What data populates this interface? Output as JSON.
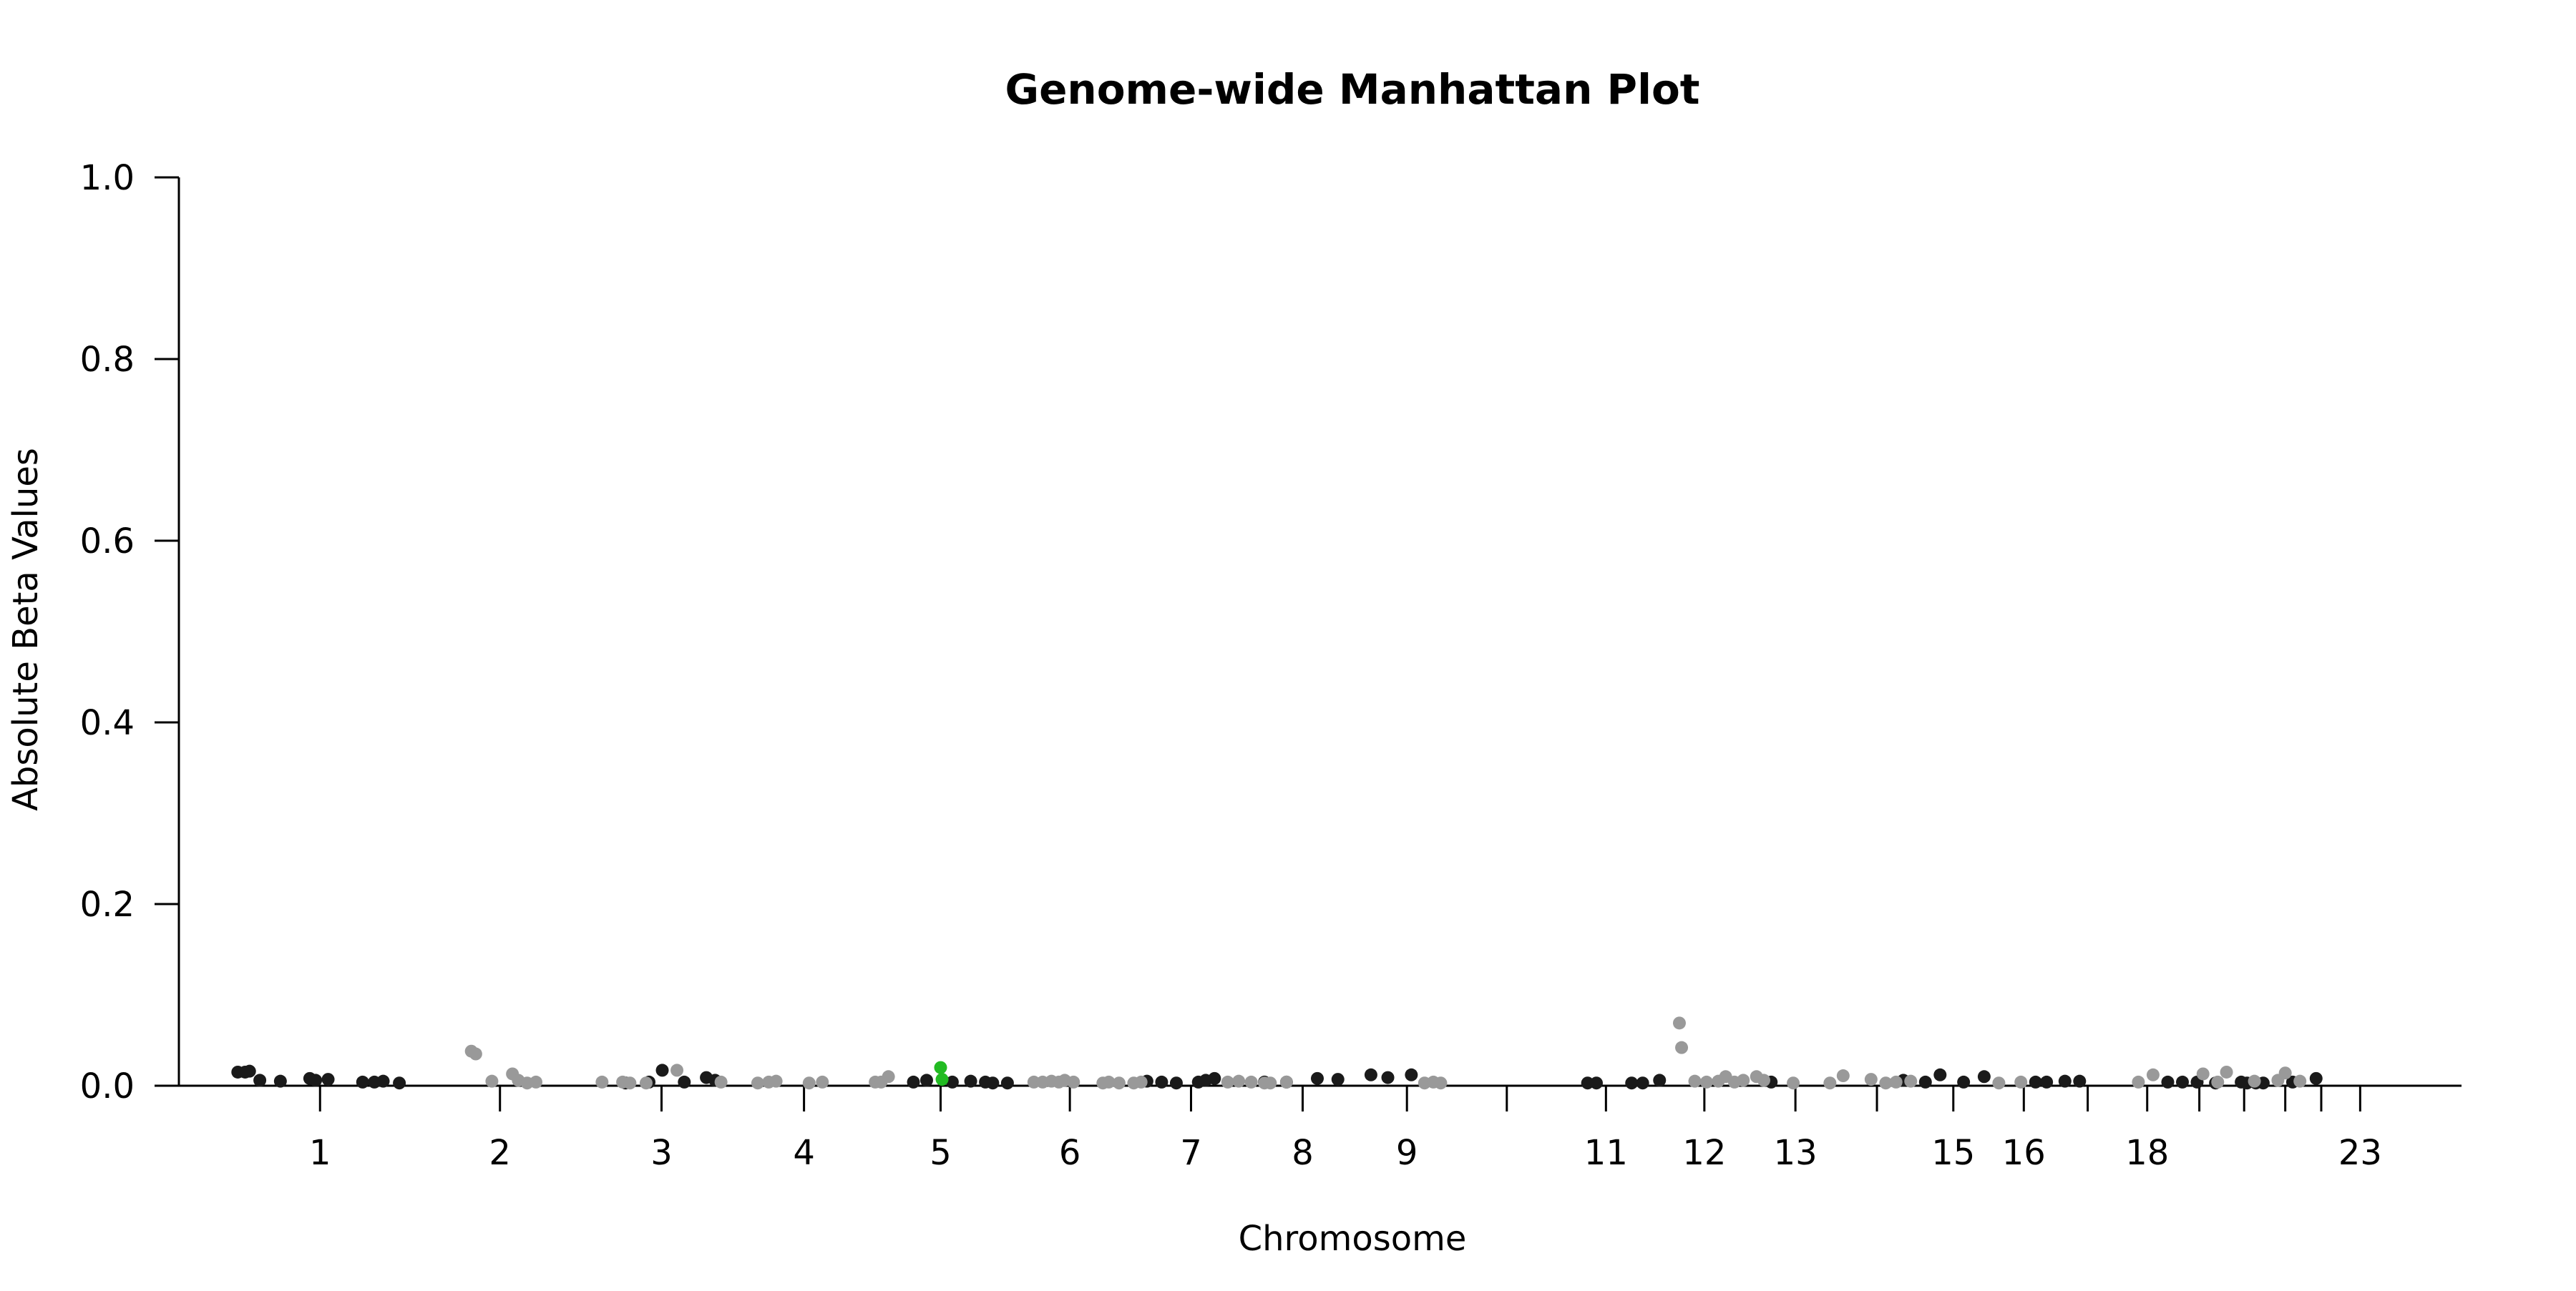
{
  "chart_data": {
    "type": "scatter",
    "title": "Genome-wide Manhattan Plot",
    "xlabel": "Chromosome",
    "ylabel": "Absolute Beta Values",
    "ylim": [
      0,
      1
    ],
    "yticks": [
      "0.0",
      "0.2",
      "0.4",
      "0.6",
      "0.8",
      "1.0"
    ],
    "xlim": [
      0,
      3040
    ],
    "grid": false,
    "legend": "none",
    "colors": {
      "odd_chromosome": "#1a1a1a",
      "even_chromosome": "#999999",
      "highlight": "#22bb22"
    },
    "chromosomes": [
      {
        "label": "1",
        "start": 0,
        "end": 248,
        "tick": 124
      },
      {
        "label": "2",
        "start": 248,
        "end": 490,
        "tick": 369
      },
      {
        "label": "3",
        "start": 490,
        "end": 688,
        "tick": 589
      },
      {
        "label": "4",
        "start": 688,
        "end": 878,
        "tick": 783
      },
      {
        "label": "5",
        "start": 878,
        "end": 1059,
        "tick": 969
      },
      {
        "label": "6",
        "start": 1059,
        "end": 1230,
        "tick": 1145
      },
      {
        "label": "7",
        "start": 1230,
        "end": 1389,
        "tick": 1310
      },
      {
        "label": "8",
        "start": 1389,
        "end": 1535,
        "tick": 1462
      },
      {
        "label": "9",
        "start": 1535,
        "end": 1673,
        "tick": 1604
      },
      {
        "label": "",
        "start": 1673,
        "end": 1807,
        "tick": 1740
      },
      {
        "label": "11",
        "start": 1807,
        "end": 1942,
        "tick": 1875
      },
      {
        "label": "12",
        "start": 1942,
        "end": 2076,
        "tick": 2009
      },
      {
        "label": "13",
        "start": 2076,
        "end": 2190,
        "tick": 2133
      },
      {
        "label": "",
        "start": 2190,
        "end": 2297,
        "tick": 2244
      },
      {
        "label": "15",
        "start": 2297,
        "end": 2399,
        "tick": 2348
      },
      {
        "label": "16",
        "start": 2399,
        "end": 2489,
        "tick": 2444
      },
      {
        "label": "",
        "start": 2489,
        "end": 2572,
        "tick": 2531
      },
      {
        "label": "18",
        "start": 2572,
        "end": 2653,
        "tick": 2612
      },
      {
        "label": "",
        "start": 2653,
        "end": 2712,
        "tick": 2683
      },
      {
        "label": "",
        "start": 2712,
        "end": 2776,
        "tick": 2744
      },
      {
        "label": "",
        "start": 2776,
        "end": 2823,
        "tick": 2800
      },
      {
        "label": "",
        "start": 2823,
        "end": 2874,
        "tick": 2849
      },
      {
        "label": "23",
        "start": 2874,
        "end": 2929,
        "tick": 2902
      }
    ],
    "series": [
      {
        "name": "",
        "group": "odd_chromosome",
        "points": [
          [
            12,
            0.015
          ],
          [
            22,
            0.015
          ],
          [
            28,
            0.016
          ],
          [
            42,
            0.006
          ],
          [
            70,
            0.005
          ],
          [
            110,
            0.008
          ],
          [
            118,
            0.006
          ],
          [
            135,
            0.007
          ],
          [
            182,
            0.004
          ],
          [
            198,
            0.004
          ],
          [
            210,
            0.005
          ],
          [
            232,
            0.003
          ],
          [
            540,
            0.003
          ],
          [
            572,
            0.004
          ],
          [
            590,
            0.017
          ],
          [
            620,
            0.004
          ],
          [
            650,
            0.009
          ],
          [
            662,
            0.006
          ],
          [
            1410,
            0.004
          ],
          [
            1440,
            0.004
          ],
          [
            1482,
            0.008
          ],
          [
            1510,
            0.007
          ],
          [
            932,
            0.004
          ],
          [
            950,
            0.006
          ],
          [
            985,
            0.004
          ],
          [
            1010,
            0.005
          ],
          [
            1030,
            0.004
          ],
          [
            1040,
            0.003
          ],
          [
            1060,
            0.003
          ],
          [
            1250,
            0.005
          ],
          [
            1270,
            0.004
          ],
          [
            1290,
            0.003
          ],
          [
            1320,
            0.004
          ],
          [
            1330,
            0.006
          ],
          [
            1342,
            0.008
          ],
          [
            1555,
            0.012
          ],
          [
            1578,
            0.009
          ],
          [
            1610,
            0.012
          ],
          [
            1850,
            0.003
          ],
          [
            1862,
            0.003
          ],
          [
            1910,
            0.003
          ],
          [
            1925,
            0.003
          ],
          [
            1948,
            0.006
          ],
          [
            2100,
            0.004
          ],
          [
            2280,
            0.006
          ],
          [
            2310,
            0.004
          ],
          [
            2330,
            0.012
          ],
          [
            2362,
            0.004
          ],
          [
            2390,
            0.01
          ],
          [
            2460,
            0.004
          ],
          [
            2475,
            0.004
          ],
          [
            2500,
            0.005
          ],
          [
            2520,
            0.005
          ],
          [
            2640,
            0.004
          ],
          [
            2660,
            0.004
          ],
          [
            2680,
            0.004
          ],
          [
            2705,
            0.003
          ],
          [
            2740,
            0.004
          ],
          [
            2748,
            0.003
          ],
          [
            2760,
            0.003
          ],
          [
            2770,
            0.003
          ],
          [
            2810,
            0.004
          ],
          [
            2842,
            0.008
          ]
        ]
      },
      {
        "name": "",
        "group": "even_chromosome",
        "points": [
          [
            330,
            0.038
          ],
          [
            336,
            0.035
          ],
          [
            358,
            0.005
          ],
          [
            386,
            0.013
          ],
          [
            394,
            0.006
          ],
          [
            406,
            0.003
          ],
          [
            418,
            0.004
          ],
          [
            508,
            0.004
          ],
          [
            536,
            0.004
          ],
          [
            546,
            0.003
          ],
          [
            568,
            0.003
          ],
          [
            610,
            0.017
          ],
          [
            670,
            0.004
          ],
          [
            720,
            0.003
          ],
          [
            735,
            0.004
          ],
          [
            745,
            0.005
          ],
          [
            790,
            0.003
          ],
          [
            808,
            0.004
          ],
          [
            880,
            0.004
          ],
          [
            888,
            0.004
          ],
          [
            898,
            0.01
          ],
          [
            1096,
            0.004
          ],
          [
            1108,
            0.004
          ],
          [
            1120,
            0.005
          ],
          [
            1130,
            0.004
          ],
          [
            1138,
            0.006
          ],
          [
            1150,
            0.004
          ],
          [
            1190,
            0.003
          ],
          [
            1198,
            0.004
          ],
          [
            1212,
            0.003
          ],
          [
            1232,
            0.003
          ],
          [
            1242,
            0.004
          ],
          [
            1360,
            0.004
          ],
          [
            1375,
            0.005
          ],
          [
            1392,
            0.004
          ],
          [
            1410,
            0.003
          ],
          [
            1418,
            0.003
          ],
          [
            1440,
            0.004
          ],
          [
            1628,
            0.003
          ],
          [
            1640,
            0.004
          ],
          [
            1650,
            0.003
          ],
          [
            1975,
            0.069
          ],
          [
            1978,
            0.042
          ],
          [
            1996,
            0.005
          ],
          [
            2012,
            0.004
          ],
          [
            2028,
            0.005
          ],
          [
            2038,
            0.01
          ],
          [
            2050,
            0.004
          ],
          [
            2062,
            0.006
          ],
          [
            2080,
            0.01
          ],
          [
            2090,
            0.006
          ],
          [
            2130,
            0.003
          ],
          [
            2180,
            0.003
          ],
          [
            2198,
            0.011
          ],
          [
            2236,
            0.007
          ],
          [
            2256,
            0.003
          ],
          [
            2270,
            0.004
          ],
          [
            2290,
            0.005
          ],
          [
            2410,
            0.003
          ],
          [
            2440,
            0.004
          ],
          [
            2600,
            0.004
          ],
          [
            2620,
            0.012
          ],
          [
            2688,
            0.013
          ],
          [
            2708,
            0.004
          ],
          [
            2720,
            0.015
          ],
          [
            2758,
            0.005
          ],
          [
            2790,
            0.006
          ],
          [
            2800,
            0.014
          ],
          [
            2820,
            0.005
          ]
        ]
      },
      {
        "name": "",
        "group": "highlight",
        "points": [
          [
            969,
            0.02
          ],
          [
            971,
            0.007
          ]
        ]
      }
    ]
  }
}
